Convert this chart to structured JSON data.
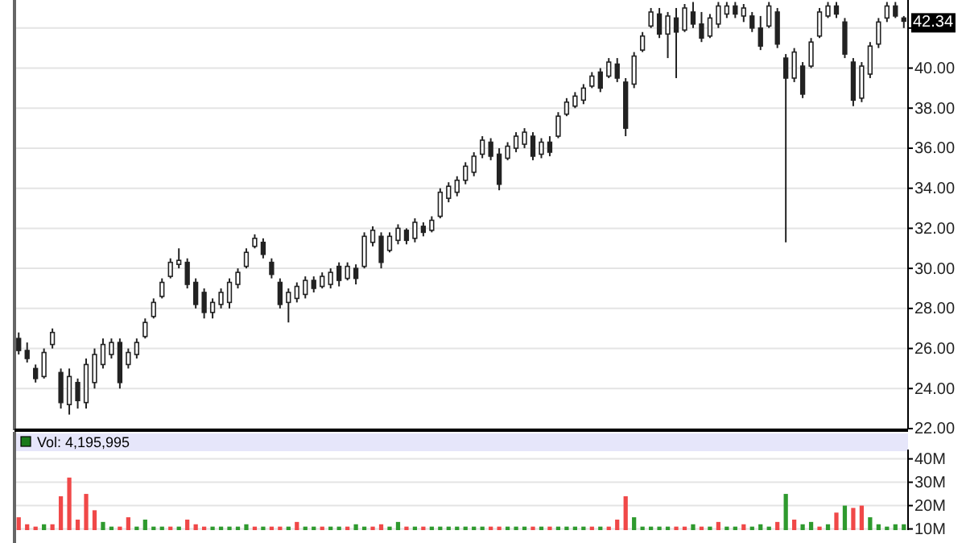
{
  "chart_data": [
    {
      "type": "candlestick",
      "color": "#222222",
      "categories": [
        null,
        null,
        null,
        null,
        null,
        null,
        null,
        null,
        null,
        null,
        null,
        null,
        null,
        null,
        null,
        null,
        null,
        null,
        null,
        null,
        null,
        null,
        null,
        null,
        null,
        null,
        null,
        null,
        null,
        null,
        null,
        null,
        null,
        null,
        null,
        null,
        null,
        null,
        null,
        null,
        null,
        null,
        null,
        null,
        null,
        null,
        null,
        null,
        null,
        null,
        null,
        null,
        null,
        null,
        null,
        null,
        null,
        null,
        null,
        null,
        null,
        null,
        null,
        null,
        null,
        null,
        null,
        null,
        null,
        null,
        null,
        null,
        null,
        null,
        null,
        null,
        null,
        null,
        null,
        null,
        null,
        null,
        null,
        null,
        null,
        null,
        null,
        null,
        null,
        null,
        null,
        null,
        null,
        null,
        null,
        null,
        null,
        null,
        null,
        null,
        null,
        null,
        null,
        null,
        null,
        null
      ],
      "ohlc": [
        [
          26.5,
          26.8,
          25.7,
          25.9
        ],
        [
          25.9,
          26.3,
          25.3,
          25.5
        ],
        [
          25.0,
          25.2,
          24.3,
          24.5
        ],
        [
          24.6,
          26,
          24.5,
          25.8
        ],
        [
          26.2,
          27,
          26,
          26.8
        ],
        [
          24.8,
          25,
          23,
          23.3
        ],
        [
          23.2,
          25,
          22.7,
          24.6
        ],
        [
          24.3,
          24.5,
          23,
          23.4
        ],
        [
          23.3,
          25.5,
          23,
          25.2
        ],
        [
          24.3,
          26,
          24,
          25.7
        ],
        [
          25.2,
          26.5,
          25,
          26.2
        ],
        [
          25.7,
          26.5,
          25.5,
          26.3
        ],
        [
          26.3,
          26.5,
          24,
          24.3
        ],
        [
          25.2,
          26,
          25,
          25.8
        ],
        [
          25.7,
          26.5,
          25.5,
          26.3
        ],
        [
          26.6,
          27.5,
          26.5,
          27.3
        ],
        [
          27.6,
          28.5,
          27.5,
          28.3
        ],
        [
          28.6,
          29.5,
          28.5,
          29.3
        ],
        [
          29.6,
          30.5,
          29.5,
          30.3
        ],
        [
          30.2,
          31,
          30,
          30.4
        ],
        [
          30.3,
          30.5,
          29,
          29.2
        ],
        [
          29.3,
          29.5,
          28,
          28.2
        ],
        [
          28.8,
          29,
          27.5,
          27.8
        ],
        [
          27.8,
          28.5,
          27.5,
          28.3
        ],
        [
          28.2,
          29,
          28,
          28.8
        ],
        [
          28.3,
          29.5,
          28,
          29.3
        ],
        [
          29.2,
          30,
          29,
          29.8
        ],
        [
          30.1,
          31,
          30,
          30.8
        ],
        [
          31.1,
          31.7,
          31,
          31.5
        ],
        [
          31.3,
          31.5,
          30.5,
          30.7
        ],
        [
          30.3,
          30.5,
          29.5,
          29.7
        ],
        [
          29.3,
          29.5,
          28,
          28.2
        ],
        [
          28.3,
          29,
          27.3,
          28.8
        ],
        [
          28.5,
          29.3,
          28.3,
          29.1
        ],
        [
          28.7,
          29.6,
          28.5,
          29.4
        ],
        [
          29.4,
          29.6,
          28.8,
          29
        ],
        [
          29.1,
          29.8,
          29,
          29.6
        ],
        [
          29.2,
          30,
          29,
          29.8
        ],
        [
          30.1,
          30.3,
          29.1,
          29.4
        ],
        [
          29.5,
          30.3,
          29.4,
          30.1
        ],
        [
          30,
          30.2,
          29.2,
          29.5
        ],
        [
          30.1,
          31.8,
          30,
          31.6
        ],
        [
          31.3,
          32.1,
          31.1,
          31.9
        ],
        [
          31.6,
          31.8,
          30,
          30.3
        ],
        [
          30.9,
          31.8,
          30.8,
          31.6
        ],
        [
          31.4,
          32.2,
          31.2,
          32
        ],
        [
          31.9,
          32,
          31.2,
          31.4
        ],
        [
          31.5,
          32.5,
          31.3,
          32.3
        ],
        [
          32.1,
          32.3,
          31.6,
          31.8
        ],
        [
          31.9,
          32.6,
          31.8,
          32.4
        ],
        [
          32.6,
          34,
          32.5,
          33.8
        ],
        [
          33.5,
          34.3,
          33.3,
          34.1
        ],
        [
          33.8,
          34.6,
          33.6,
          34.4
        ],
        [
          34.4,
          35.3,
          34.2,
          35.1
        ],
        [
          34.8,
          35.8,
          34.6,
          35.6
        ],
        [
          35.7,
          36.6,
          35.5,
          36.4
        ],
        [
          36.3,
          36.5,
          35.4,
          35.6
        ],
        [
          35.7,
          36,
          33.9,
          34.2
        ],
        [
          35.5,
          36.3,
          35.4,
          36.1
        ],
        [
          36,
          36.8,
          35.8,
          36.6
        ],
        [
          36.2,
          37,
          36,
          36.8
        ],
        [
          36.6,
          36.8,
          35.4,
          35.6
        ],
        [
          35.7,
          36.5,
          35.5,
          36.3
        ],
        [
          36.3,
          36.6,
          35.6,
          35.8
        ],
        [
          36.6,
          37.8,
          36.5,
          37.6
        ],
        [
          37.7,
          38.5,
          37.6,
          38.3
        ],
        [
          38.1,
          38.8,
          38,
          38.6
        ],
        [
          38.4,
          39.2,
          38.2,
          39
        ],
        [
          39.1,
          39.8,
          39,
          39.6
        ],
        [
          39.8,
          40,
          38.8,
          39
        ],
        [
          39.6,
          40.5,
          39.5,
          40.3
        ],
        [
          40.2,
          40.5,
          39.3,
          39.5
        ],
        [
          39.3,
          39.5,
          36.6,
          37
        ],
        [
          39.2,
          40.8,
          39,
          40.6
        ],
        [
          40.9,
          41.8,
          40.8,
          41.6
        ],
        [
          42.1,
          43,
          42,
          42.8
        ],
        [
          42.7,
          43,
          41.5,
          41.7
        ],
        [
          41.7,
          42.8,
          40.5,
          42.6
        ],
        [
          42.5,
          43,
          39.5,
          41.8
        ],
        [
          41.9,
          43.2,
          41.8,
          43
        ],
        [
          42.8,
          43.3,
          42,
          42.2
        ],
        [
          42.2,
          42.8,
          41.3,
          41.5
        ],
        [
          41.6,
          42.7,
          41.5,
          42.5
        ],
        [
          42.2,
          43.3,
          42,
          43.1
        ],
        [
          42.7,
          43.3,
          42.5,
          43.1
        ],
        [
          43.1,
          43.3,
          42.5,
          42.7
        ],
        [
          42.6,
          43.2,
          42.3,
          43
        ],
        [
          42.6,
          42.8,
          41.8,
          42
        ],
        [
          42,
          42.6,
          40.9,
          41.1
        ],
        [
          42.1,
          43.3,
          42,
          43.1
        ],
        [
          42.8,
          43,
          41,
          41.2
        ],
        [
          40.5,
          40.7,
          31.3,
          39.5
        ],
        [
          39.5,
          41,
          39.3,
          40.8
        ],
        [
          40.1,
          40.3,
          38.5,
          38.7
        ],
        [
          40.1,
          41.5,
          40,
          41.3
        ],
        [
          41.6,
          43,
          41.5,
          42.8
        ],
        [
          42.6,
          43.3,
          42.5,
          43.1
        ],
        [
          43.1,
          43.3,
          42.5,
          42.7
        ],
        [
          42.3,
          42.5,
          40.5,
          40.7
        ],
        [
          40.3,
          40.5,
          38.1,
          38.4
        ],
        [
          38.5,
          40.3,
          38.3,
          40.1
        ],
        [
          39.7,
          41.3,
          39.5,
          41.1
        ],
        [
          41.2,
          42.5,
          41,
          42.3
        ],
        [
          42.5,
          43.3,
          42.3,
          43.1
        ],
        [
          43.1,
          43.3,
          42.5,
          42.6
        ],
        [
          42.5,
          42.6,
          42,
          42.34
        ]
      ],
      "ylim": [
        22,
        43.4
      ],
      "yticks": [
        {
          "value": 22,
          "label": "22.00"
        },
        {
          "value": 24,
          "label": "24.00"
        },
        {
          "value": 26,
          "label": "26.00"
        },
        {
          "value": 28,
          "label": "28.00"
        },
        {
          "value": 30,
          "label": "30.00"
        },
        {
          "value": 32,
          "label": "32.00"
        },
        {
          "value": 34,
          "label": "34.00"
        },
        {
          "value": 36,
          "label": "36.00"
        },
        {
          "value": 38,
          "label": "38.00"
        },
        {
          "value": 40,
          "label": "40.00"
        },
        {
          "value": 42,
          "label": null
        }
      ],
      "grid": "y",
      "annotations": [
        {
          "text": "42.34",
          "y": 42.34
        }
      ]
    },
    {
      "type": "bar",
      "title": "Vol: 4,195,995",
      "categories": [
        null,
        null,
        null,
        null,
        null,
        null,
        null,
        null,
        null,
        null,
        null,
        null,
        null,
        null,
        null,
        null,
        null,
        null,
        null,
        null,
        null,
        null,
        null,
        null,
        null,
        null,
        null,
        null,
        null,
        null,
        null,
        null,
        null,
        null,
        null,
        null,
        null,
        null,
        null,
        null,
        null,
        null,
        null,
        null,
        null,
        null,
        null,
        null,
        null,
        null,
        null,
        null,
        null,
        null,
        null,
        null,
        null,
        null,
        null,
        null,
        null,
        null,
        null,
        null,
        null,
        null,
        null,
        null,
        null,
        null,
        null,
        null,
        null,
        null,
        null,
        null,
        null,
        null,
        null,
        null,
        null,
        null,
        null,
        null,
        null,
        null,
        null,
        null,
        null,
        null,
        null,
        null,
        null,
        null,
        null,
        null,
        null,
        null,
        null,
        null,
        null,
        null,
        null,
        null,
        null,
        null
      ],
      "values": [
        15,
        12,
        11,
        12,
        12,
        24,
        32,
        14,
        25,
        18,
        13,
        11,
        11,
        15,
        11,
        14,
        11,
        11,
        11,
        11,
        14,
        12,
        11,
        11,
        11,
        11,
        11,
        12,
        11,
        11,
        11,
        11,
        11,
        13,
        11,
        11,
        11,
        11,
        11,
        11,
        12,
        11,
        11,
        12,
        11,
        13,
        11,
        11,
        11,
        11,
        11,
        11,
        11,
        11,
        11,
        11,
        11,
        11,
        11,
        11,
        11,
        11,
        11,
        11,
        11,
        11,
        11,
        11,
        11,
        11,
        11,
        14,
        24,
        15,
        11,
        11,
        11,
        11,
        11,
        11,
        12,
        11,
        11,
        13,
        11,
        11,
        12,
        11,
        12,
        11,
        13,
        25,
        14,
        12,
        13,
        11,
        12,
        17,
        20,
        19,
        20,
        15,
        12,
        11,
        12,
        12
      ],
      "colors": [
        "#f04848",
        "#f04848",
        "#f04848",
        "#2e9a2e",
        "#f04848",
        "#f04848",
        "#f04848",
        "#f04848",
        "#f04848",
        "#f04848",
        "#2e9a2e",
        "#2e9a2e",
        "#f04848",
        "#f04848",
        "#2e9a2e",
        "#2e9a2e",
        "#2e9a2e",
        "#2e9a2e",
        "#f04848",
        "#2e9a2e",
        "#f04848",
        "#f04848",
        "#f04848",
        "#2e9a2e",
        "#2e9a2e",
        "#2e9a2e",
        "#2e9a2e",
        "#2e9a2e",
        "#f04848",
        "#2e9a2e",
        "#f04848",
        "#f04848",
        "#2e9a2e",
        "#f04848",
        "#2e9a2e",
        "#2e9a2e",
        "#f04848",
        "#2e9a2e",
        "#2e9a2e",
        "#f04848",
        "#2e9a2e",
        "#2e9a2e",
        "#f04848",
        "#f04848",
        "#2e9a2e",
        "#2e9a2e",
        "#f04848",
        "#2e9a2e",
        "#f04848",
        "#2e9a2e",
        "#2e9a2e",
        "#2e9a2e",
        "#2e9a2e",
        "#2e9a2e",
        "#2e9a2e",
        "#2e9a2e",
        "#f04848",
        "#f04848",
        "#2e9a2e",
        "#2e9a2e",
        "#2e9a2e",
        "#f04848",
        "#2e9a2e",
        "#f04848",
        "#2e9a2e",
        "#2e9a2e",
        "#2e9a2e",
        "#2e9a2e",
        "#f04848",
        "#2e9a2e",
        "#f04848",
        "#f04848",
        "#f04848",
        "#2e9a2e",
        "#2e9a2e",
        "#2e9a2e",
        "#2e9a2e",
        "#2e9a2e",
        "#f04848",
        "#f04848",
        "#2e9a2e",
        "#f04848",
        "#2e9a2e",
        "#f04848",
        "#2e9a2e",
        "#2e9a2e",
        "#f04848",
        "#2e9a2e",
        "#2e9a2e",
        "#2e9a2e",
        "#f04848",
        "#2e9a2e",
        "#f04848",
        "#2e9a2e",
        "#2e9a2e",
        "#f04848",
        "#2e9a2e",
        "#f04848",
        "#2e9a2e",
        "#f04848",
        "#f04848",
        "#2e9a2e",
        "#2e9a2e",
        "#2e9a2e",
        "#2e9a2e",
        "#2e9a2e"
      ],
      "ylim": [
        9.5,
        44
      ],
      "yticks": [
        {
          "value": 10,
          "label": "10M"
        },
        {
          "value": 20,
          "label": "20M"
        },
        {
          "value": 30,
          "label": "30M"
        },
        {
          "value": 40,
          "label": "40M"
        }
      ],
      "grid": "y"
    }
  ]
}
